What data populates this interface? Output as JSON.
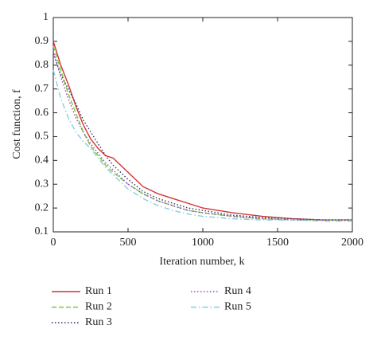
{
  "chart_data": {
    "type": "line",
    "xlabel": "Iteration number, k",
    "ylabel": "Cost function, f",
    "x": [
      0,
      50,
      100,
      150,
      200,
      250,
      300,
      350,
      400,
      500,
      600,
      700,
      800,
      900,
      1000,
      1200,
      1400,
      1600,
      1800,
      2000
    ],
    "series": [
      {
        "name": "Run 1",
        "color": "#d03434",
        "dash": "solid",
        "values": [
          0.9,
          0.8,
          0.72,
          0.63,
          0.55,
          0.49,
          0.45,
          0.42,
          0.41,
          0.35,
          0.29,
          0.26,
          0.24,
          0.22,
          0.2,
          0.18,
          0.165,
          0.155,
          0.15,
          0.15
        ]
      },
      {
        "name": "Run 2",
        "color": "#77cc33",
        "dash": "dashed",
        "values": [
          0.88,
          0.78,
          0.68,
          0.6,
          0.52,
          0.46,
          0.42,
          0.38,
          0.35,
          0.3,
          0.26,
          0.23,
          0.21,
          0.19,
          0.18,
          0.165,
          0.155,
          0.15,
          0.15,
          0.15
        ]
      },
      {
        "name": "Run 3",
        "color": "#333366",
        "dash": "dotted",
        "values": [
          0.85,
          0.76,
          0.7,
          0.64,
          0.57,
          0.52,
          0.47,
          0.42,
          0.38,
          0.32,
          0.27,
          0.24,
          0.22,
          0.2,
          0.19,
          0.17,
          0.16,
          0.155,
          0.15,
          0.15
        ]
      },
      {
        "name": "Run 4",
        "color": "#9944cc",
        "dash": "dotted",
        "values": [
          0.86,
          0.75,
          0.66,
          0.58,
          0.52,
          0.47,
          0.43,
          0.39,
          0.36,
          0.3,
          0.26,
          0.23,
          0.21,
          0.19,
          0.18,
          0.165,
          0.155,
          0.15,
          0.15,
          0.15
        ]
      },
      {
        "name": "Run 5",
        "color": "#88ccdd",
        "dash": "dashdot",
        "values": [
          0.78,
          0.66,
          0.58,
          0.52,
          0.48,
          0.45,
          0.41,
          0.37,
          0.34,
          0.28,
          0.24,
          0.21,
          0.19,
          0.175,
          0.165,
          0.155,
          0.15,
          0.15,
          0.145,
          0.145
        ]
      }
    ],
    "xlim": [
      0,
      2000
    ],
    "xticks": [
      0,
      500,
      1000,
      1500,
      2000
    ],
    "ylim": [
      0.1,
      1
    ],
    "yticks": [
      0.1,
      0.2,
      0.3,
      0.4,
      0.5,
      0.6,
      0.7,
      0.8,
      0.9,
      1
    ],
    "grid": false,
    "legend": "below"
  }
}
